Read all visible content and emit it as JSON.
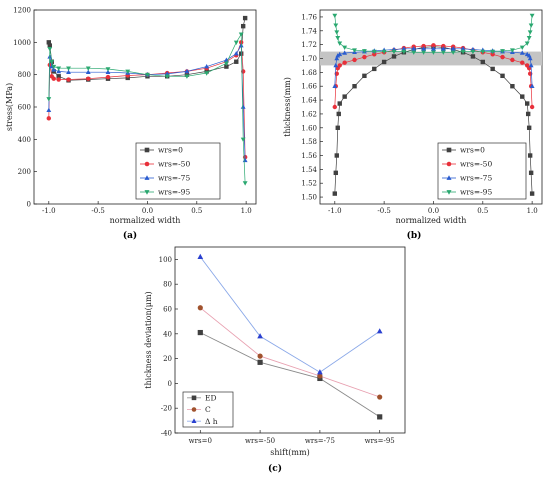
{
  "chart_data": [
    {
      "id": "a",
      "panel_label": "(a)",
      "type": "line",
      "xlabel": "normalized width",
      "ylabel": "stress(MPa)",
      "xlim": [
        -1.15,
        1.1
      ],
      "ylim": [
        0,
        1200
      ],
      "xticks": [
        -1.0,
        -0.5,
        0.0,
        0.5,
        1.0
      ],
      "xtick_labels": [
        "-1.0",
        "-0.5",
        "0.0",
        "0.5",
        "1.0"
      ],
      "yticks": [
        0,
        200,
        400,
        600,
        800,
        1000,
        1200
      ],
      "ytick_labels": [
        "0",
        "200",
        "400",
        "600",
        "800",
        "1000",
        "1200"
      ],
      "legend_position": "lower-right",
      "series": [
        {
          "name": "wrs=0",
          "color": "#404040",
          "marker": "square",
          "x": [
            -1.0,
            -0.99,
            -0.97,
            -0.95,
            -0.9,
            -0.8,
            -0.6,
            -0.4,
            -0.2,
            0.0,
            0.2,
            0.4,
            0.6,
            0.8,
            0.9,
            0.95,
            0.97,
            0.99
          ],
          "y": [
            1000,
            980,
            880,
            820,
            790,
            765,
            770,
            775,
            780,
            790,
            790,
            800,
            820,
            850,
            880,
            930,
            1100,
            1150
          ]
        },
        {
          "name": "wrs=-50",
          "color": "#e8303a",
          "marker": "circle",
          "x": [
            -1.0,
            -0.99,
            -0.97,
            -0.95,
            -0.9,
            -0.8,
            -0.6,
            -0.4,
            -0.2,
            0.0,
            0.2,
            0.4,
            0.6,
            0.8,
            0.9,
            0.95,
            0.97,
            0.99
          ],
          "y": [
            530,
            860,
            790,
            775,
            770,
            770,
            775,
            785,
            795,
            800,
            810,
            820,
            840,
            880,
            920,
            1000,
            820,
            290
          ]
        },
        {
          "name": "wrs=-75",
          "color": "#2a5cd0",
          "marker": "triangle-up",
          "x": [
            -1.0,
            -0.99,
            -0.97,
            -0.95,
            -0.9,
            -0.8,
            -0.6,
            -0.4,
            -0.2,
            0.0,
            0.2,
            0.4,
            0.6,
            0.8,
            0.9,
            0.95,
            0.97,
            0.99
          ],
          "y": [
            580,
            910,
            850,
            830,
            820,
            815,
            815,
            815,
            810,
            800,
            805,
            820,
            850,
            890,
            930,
            980,
            600,
            270
          ]
        },
        {
          "name": "wrs=-95",
          "color": "#2aa870",
          "marker": "triangle-down",
          "x": [
            -1.0,
            -0.99,
            -0.97,
            -0.95,
            -0.9,
            -0.8,
            -0.6,
            -0.4,
            -0.2,
            0.0,
            0.2,
            0.4,
            0.6,
            0.8,
            0.9,
            0.95,
            0.97,
            0.99
          ],
          "y": [
            650,
            960,
            880,
            850,
            840,
            840,
            840,
            835,
            820,
            800,
            790,
            790,
            810,
            870,
            1000,
            1050,
            400,
            130
          ]
        }
      ]
    },
    {
      "id": "b",
      "panel_label": "(b)",
      "type": "scatter",
      "xlabel": "normalized width",
      "ylabel": "thickness(mm)",
      "xlim": [
        -1.15,
        1.1
      ],
      "ylim": [
        1.49,
        1.77
      ],
      "xticks": [
        -1.0,
        -0.5,
        0.0,
        0.5,
        1.0
      ],
      "xtick_labels": [
        "-1.0",
        "-0.5",
        "0.0",
        "0.5",
        "1.0"
      ],
      "yticks": [
        1.5,
        1.52,
        1.54,
        1.56,
        1.58,
        1.6,
        1.62,
        1.64,
        1.66,
        1.68,
        1.7,
        1.72,
        1.74,
        1.76
      ],
      "ytick_labels": [
        "1.50",
        "1.52",
        "1.54",
        "1.56",
        "1.58",
        "1.60",
        "1.62",
        "1.64",
        "1.66",
        "1.68",
        "1.70",
        "1.72",
        "1.74",
        "1.76"
      ],
      "tolerance_band": [
        1.69,
        1.71
      ],
      "legend_position": "lower-right",
      "series": [
        {
          "name": "wrs=0",
          "color": "#404040",
          "marker": "square",
          "x": [
            -1.0,
            -0.99,
            -0.98,
            -0.97,
            -0.96,
            -0.95,
            -0.9,
            -0.8,
            -0.7,
            -0.6,
            -0.5,
            -0.4,
            -0.3,
            -0.2,
            -0.1,
            0.0,
            0.1,
            0.2,
            0.3,
            0.4,
            0.5,
            0.6,
            0.7,
            0.8,
            0.9,
            0.95,
            0.96,
            0.97,
            0.98,
            0.99,
            1.0
          ],
          "y": [
            1.505,
            1.535,
            1.56,
            1.6,
            1.62,
            1.635,
            1.645,
            1.66,
            1.675,
            1.685,
            1.695,
            1.703,
            1.709,
            1.713,
            1.716,
            1.717,
            1.716,
            1.713,
            1.709,
            1.703,
            1.695,
            1.685,
            1.675,
            1.66,
            1.645,
            1.635,
            1.62,
            1.6,
            1.56,
            1.535,
            1.505
          ]
        },
        {
          "name": "wrs=-50",
          "color": "#e8303a",
          "marker": "circle",
          "x": [
            -1.0,
            -0.99,
            -0.98,
            -0.97,
            -0.95,
            -0.9,
            -0.8,
            -0.7,
            -0.6,
            -0.5,
            -0.4,
            -0.3,
            -0.2,
            -0.1,
            0.0,
            0.1,
            0.2,
            0.3,
            0.4,
            0.5,
            0.6,
            0.7,
            0.8,
            0.9,
            0.95,
            0.97,
            0.98,
            0.99,
            1.0
          ],
          "y": [
            1.63,
            1.66,
            1.678,
            1.686,
            1.69,
            1.694,
            1.698,
            1.702,
            1.706,
            1.709,
            1.712,
            1.715,
            1.717,
            1.718,
            1.719,
            1.718,
            1.717,
            1.715,
            1.712,
            1.709,
            1.706,
            1.702,
            1.698,
            1.694,
            1.69,
            1.686,
            1.678,
            1.66,
            1.63
          ]
        },
        {
          "name": "wrs=-75",
          "color": "#2a5cd0",
          "marker": "triangle-up",
          "x": [
            -1.0,
            -0.99,
            -0.98,
            -0.97,
            -0.95,
            -0.9,
            -0.8,
            -0.7,
            -0.6,
            -0.5,
            -0.4,
            -0.3,
            -0.2,
            -0.1,
            0.0,
            0.1,
            0.2,
            0.3,
            0.4,
            0.5,
            0.6,
            0.7,
            0.8,
            0.9,
            0.95,
            0.97,
            0.98,
            0.99,
            1.0
          ],
          "y": [
            1.66,
            1.69,
            1.7,
            1.704,
            1.706,
            1.708,
            1.709,
            1.71,
            1.711,
            1.712,
            1.713,
            1.714,
            1.714,
            1.714,
            1.714,
            1.714,
            1.714,
            1.714,
            1.713,
            1.712,
            1.711,
            1.71,
            1.709,
            1.708,
            1.706,
            1.704,
            1.7,
            1.69,
            1.66
          ]
        },
        {
          "name": "wrs=-95",
          "color": "#2aa870",
          "marker": "triangle-down",
          "x": [
            -1.0,
            -0.99,
            -0.98,
            -0.97,
            -0.95,
            -0.9,
            -0.8,
            -0.7,
            -0.6,
            -0.5,
            -0.4,
            -0.3,
            -0.2,
            -0.1,
            0.0,
            0.1,
            0.2,
            0.3,
            0.4,
            0.5,
            0.6,
            0.7,
            0.8,
            0.9,
            0.95,
            0.97,
            0.98,
            0.99,
            1.0
          ],
          "y": [
            1.762,
            1.748,
            1.738,
            1.73,
            1.722,
            1.716,
            1.712,
            1.711,
            1.71,
            1.71,
            1.71,
            1.71,
            1.709,
            1.709,
            1.709,
            1.709,
            1.709,
            1.71,
            1.71,
            1.71,
            1.71,
            1.711,
            1.712,
            1.716,
            1.722,
            1.73,
            1.738,
            1.748,
            1.762
          ]
        }
      ]
    },
    {
      "id": "c",
      "panel_label": "(c)",
      "type": "line",
      "xlabel": "shift(mm)",
      "ylabel": "thickness deviation(μm)",
      "categories": [
        "wrs=0",
        "wrs=-50",
        "wrs=-75",
        "wrs=-95"
      ],
      "ylim": [
        -40,
        110
      ],
      "yticks": [
        -40,
        -20,
        0,
        20,
        40,
        60,
        80,
        100
      ],
      "ytick_labels": [
        "-40",
        "-20",
        "0",
        "20",
        "40",
        "60",
        "80",
        "100"
      ],
      "legend_position": "lower-left",
      "series": [
        {
          "name": "ED",
          "color": "#404040",
          "line_color": "#8a8a8a",
          "marker": "square",
          "values": [
            41,
            17,
            4,
            -27
          ]
        },
        {
          "name": "C",
          "color": "#a0522d",
          "line_color": "#e8a0b0",
          "marker": "circle",
          "values": [
            61,
            22,
            6,
            -11
          ]
        },
        {
          "name": "Δ h",
          "color": "#2a40d0",
          "line_color": "#8aa8e8",
          "marker": "triangle-up",
          "values": [
            102,
            38,
            9,
            42
          ]
        }
      ]
    }
  ]
}
